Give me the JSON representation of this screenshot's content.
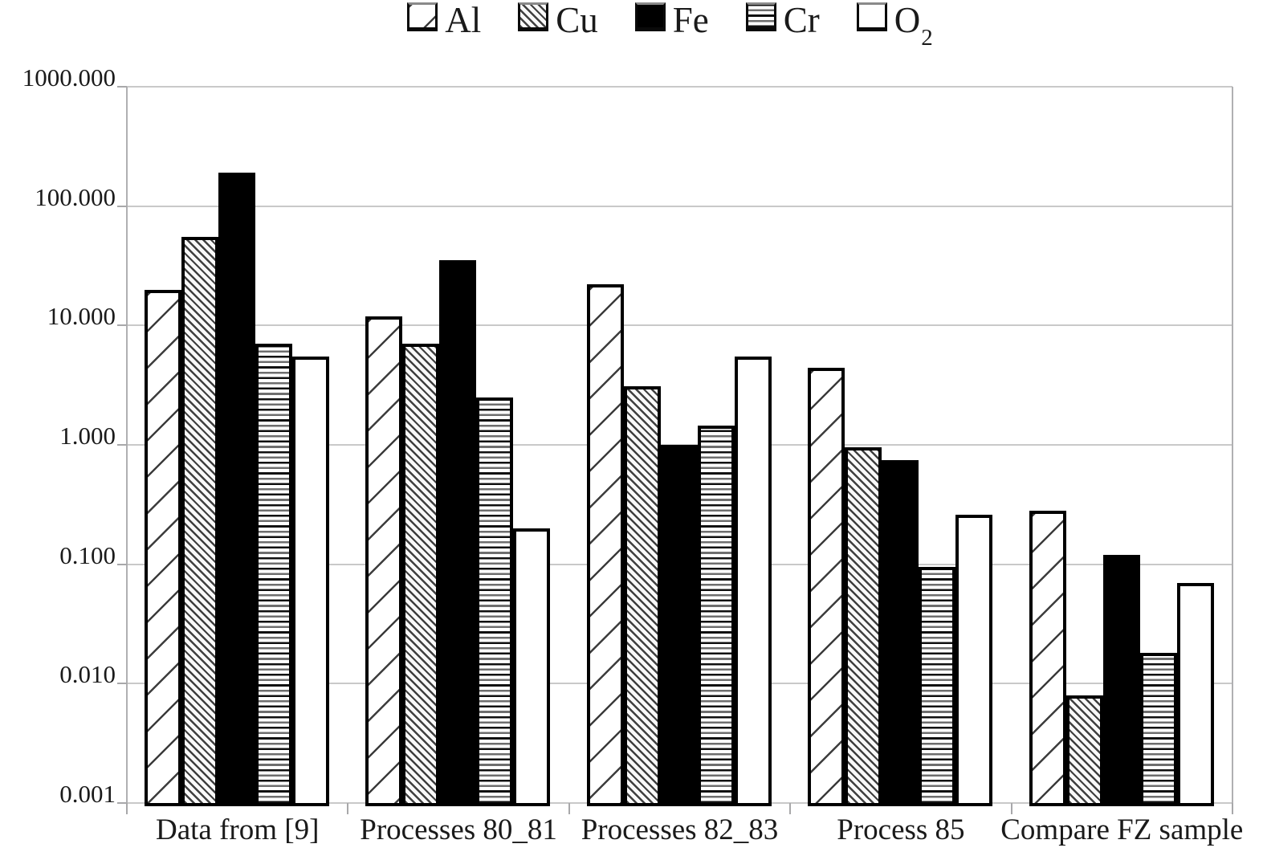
{
  "chart_data": {
    "type": "bar",
    "title": "",
    "scale": "log",
    "grid": true,
    "legend_position": "top",
    "categories": [
      "Data from [9]",
      "Processes 80_81",
      "Processes 82_83",
      "Process 85",
      "Compare FZ sample"
    ],
    "series": [
      {
        "name": "Al",
        "label": "Al",
        "label_sub": "",
        "pattern": "diagonal-up-sparse",
        "values": [
          20,
          12,
          22,
          4.4,
          0.28
        ]
      },
      {
        "name": "Cu",
        "label": "Cu",
        "label_sub": "",
        "pattern": "diagonal-down-dense",
        "values": [
          55,
          7,
          3.1,
          0.95,
          0.008
        ]
      },
      {
        "name": "Fe",
        "label": "Fe",
        "label_sub": "",
        "pattern": "solid-black",
        "values": [
          190,
          35,
          1.0,
          0.75,
          0.12
        ]
      },
      {
        "name": "Cr",
        "label": "Cr",
        "label_sub": "",
        "pattern": "horizontal-lines",
        "values": [
          7,
          2.5,
          1.45,
          0.095,
          0.018
        ]
      },
      {
        "name": "O2",
        "label": "O",
        "label_sub": "2",
        "pattern": "plain-white",
        "values": [
          5.5,
          0.2,
          5.5,
          0.26,
          0.07
        ]
      }
    ],
    "y_axis": {
      "min": 0.001,
      "max": 1000,
      "tick_labels": [
        "1000.000",
        "100.000",
        "10.000",
        "1.000",
        "0.100",
        "0.010",
        "0.001"
      ]
    },
    "xlabel": "",
    "ylabel": ""
  },
  "colors": {
    "bar_border": "#000000",
    "grid_line": "#c9c9c9",
    "axis_line": "#b0b0b2",
    "text": "#1a1a1a",
    "background": "#ffffff"
  }
}
